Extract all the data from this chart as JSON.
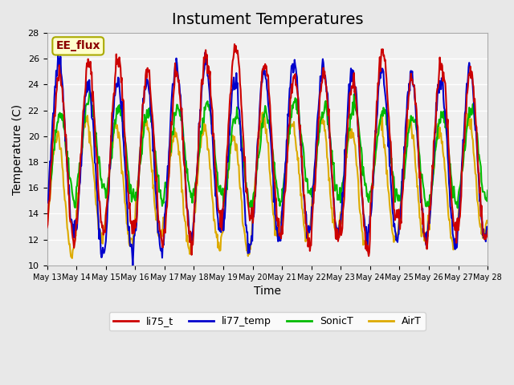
{
  "title": "Instument Temperatures",
  "xlabel": "Time",
  "ylabel": "Temperature (C)",
  "ylim": [
    10,
    28
  ],
  "n_days": 15,
  "annotation": "EE_flux",
  "annotation_color": "#8B0000",
  "annotation_bg": "#FFFFCC",
  "annotation_edge": "#AAAA00",
  "fig_bg": "#E8E8E8",
  "plot_bg": "#F0F0F0",
  "series": {
    "li75_t": {
      "color": "#CC0000",
      "lw": 1.5
    },
    "li77_temp": {
      "color": "#0000CC",
      "lw": 1.5
    },
    "SonicT": {
      "color": "#00BB00",
      "lw": 1.5
    },
    "AirT": {
      "color": "#DDAA00",
      "lw": 1.5
    }
  },
  "tick_labels": [
    "May 13",
    "May 14",
    "May 15",
    "May 16",
    "May 17",
    "May 18",
    "May 19",
    "May 20",
    "May 21",
    "May 22",
    "May 23",
    "May 24",
    "May 25",
    "May 26",
    "May 27",
    "May 28"
  ],
  "yticks": [
    10,
    12,
    14,
    16,
    18,
    20,
    22,
    24,
    26,
    28
  ],
  "title_fontsize": 14,
  "label_fontsize": 10
}
